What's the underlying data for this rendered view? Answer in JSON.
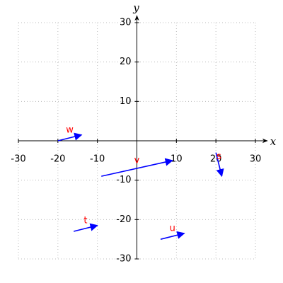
{
  "chart_data": {
    "type": "vector",
    "x_label": "x",
    "y_label": "y",
    "xlim": [
      -30,
      30
    ],
    "ylim": [
      -30,
      30
    ],
    "xticks": [
      -30,
      -20,
      -10,
      10,
      20,
      30
    ],
    "yticks": [
      -30,
      -20,
      -10,
      10,
      20,
      30
    ],
    "grid": true,
    "color": "#0000ff",
    "label_color": "#ff0000",
    "vectors": [
      {
        "name": "w",
        "start": [
          -20,
          0
        ],
        "end": [
          -14,
          1.5
        ]
      },
      {
        "name": "v",
        "start": [
          -9,
          -9
        ],
        "end": [
          9,
          -5
        ]
      },
      {
        "name": "s",
        "start": [
          20,
          -3
        ],
        "end": [
          21.5,
          -9
        ]
      },
      {
        "name": "t",
        "start": [
          -16,
          -23
        ],
        "end": [
          -10,
          -21.5
        ]
      },
      {
        "name": "u",
        "start": [
          6,
          -25
        ],
        "end": [
          12,
          -23.5
        ]
      }
    ]
  }
}
